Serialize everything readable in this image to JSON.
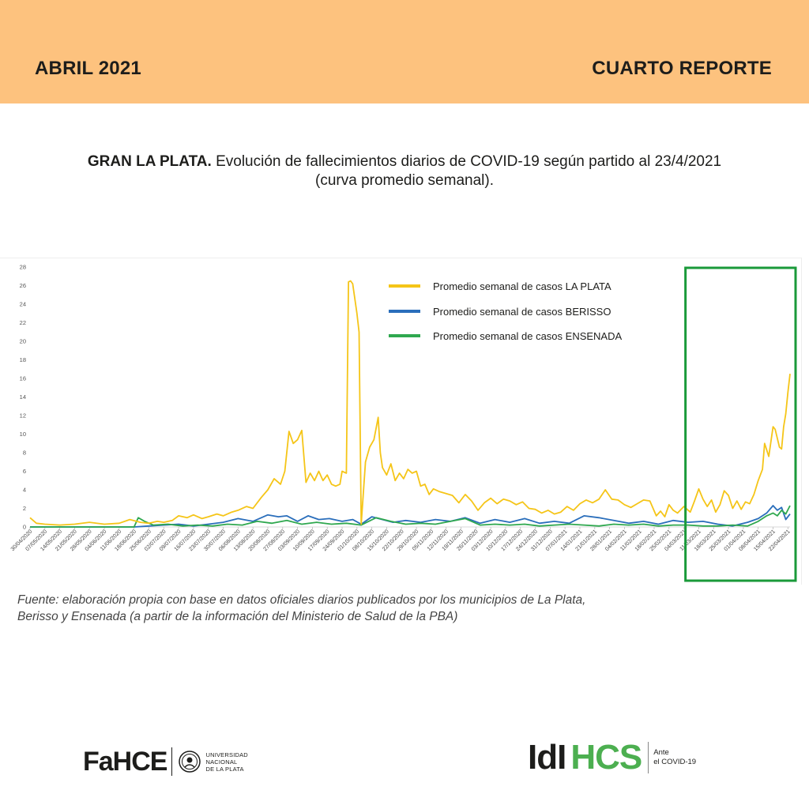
{
  "header": {
    "left": "ABRIL 2021",
    "right": "CUARTO REPORTE"
  },
  "title": {
    "bold": "GRAN LA PLATA.",
    "text": " Evolución de fallecimientos diarios de COVID-19 según partido al 23/4/2021",
    "line2": "(curva promedio semanal)."
  },
  "source": {
    "line1": "Fuente: elaboración propia con base en datos oficiales diarios publicados por los municipios de La Plata,",
    "line2": "Berisso y Ensenada (a partir de la información del Ministerio de Salud de la PBA)"
  },
  "logos": {
    "fahce": "FaHCE",
    "unlp": [
      "UNIVERSIDAD",
      "NACIONAL",
      "DE LA PLATA"
    ],
    "idi": "IdI",
    "hcs": "HCS",
    "ante": [
      "Ante",
      "el COVID-19"
    ]
  },
  "colors": {
    "band": "#fdc27e",
    "la_plata": "#f5c518",
    "berisso": "#2a6ebb",
    "ensenada": "#2fa84f",
    "highlight": "#1a9a3a",
    "hcs": "#4caf50"
  },
  "chart_data": {
    "type": "line",
    "ylim": [
      0,
      28
    ],
    "yticks": [
      0,
      2,
      4,
      6,
      8,
      10,
      12,
      14,
      16,
      18,
      20,
      22,
      24,
      26,
      28
    ],
    "x_start": "30/04/2020",
    "x_end": "23/04/2021",
    "xtick_labels": [
      "30/04/2020",
      "07/05/2020",
      "14/05/2020",
      "21/05/2020",
      "28/05/2020",
      "04/06/2020",
      "11/06/2020",
      "18/06/2020",
      "25/06/2020",
      "02/07/2020",
      "09/07/2020",
      "16/07/2020",
      "23/07/2020",
      "30/07/2020",
      "06/08/2020",
      "13/08/2020",
      "20/08/2020",
      "27/08/2020",
      "03/09/2020",
      "10/09/2020",
      "17/09/2020",
      "24/09/2020",
      "01/10/2020",
      "08/10/2020",
      "15/10/2020",
      "22/10/2020",
      "29/10/2020",
      "05/11/2020",
      "12/11/2020",
      "19/11/2020",
      "26/11/2020",
      "03/12/2020",
      "10/12/2020",
      "17/12/2020",
      "24/12/2020",
      "31/12/2020",
      "07/01/2021",
      "14/01/2021",
      "21/01/2021",
      "28/01/2021",
      "04/02/2021",
      "11/02/2021",
      "18/02/2021",
      "25/02/2021",
      "04/03/2021",
      "11/03/2021",
      "18/03/2021",
      "25/03/2021",
      "01/04/2021",
      "08/04/2021",
      "15/04/2021",
      "22/04/2021"
    ],
    "legend": {
      "placement": "top-center"
    },
    "highlight": {
      "from": "04/03/2021",
      "to": "23/04/2021"
    },
    "series": [
      {
        "name": "Promedio semanal de casos LA PLATA",
        "color_key": "la_plata",
        "points": [
          [
            "30/04/2020",
            1.0
          ],
          [
            "03/05/2020",
            0.4
          ],
          [
            "07/05/2020",
            0.3
          ],
          [
            "14/05/2020",
            0.2
          ],
          [
            "21/05/2020",
            0.3
          ],
          [
            "28/05/2020",
            0.5
          ],
          [
            "04/06/2020",
            0.3
          ],
          [
            "11/06/2020",
            0.4
          ],
          [
            "16/06/2020",
            0.8
          ],
          [
            "21/06/2020",
            0.5
          ],
          [
            "25/06/2020",
            0.4
          ],
          [
            "29/06/2020",
            0.6
          ],
          [
            "02/07/2020",
            0.5
          ],
          [
            "06/07/2020",
            0.7
          ],
          [
            "09/07/2020",
            1.2
          ],
          [
            "13/07/2020",
            1.0
          ],
          [
            "16/07/2020",
            1.3
          ],
          [
            "20/07/2020",
            0.9
          ],
          [
            "23/07/2020",
            1.1
          ],
          [
            "27/07/2020",
            1.4
          ],
          [
            "30/07/2020",
            1.2
          ],
          [
            "03/08/2020",
            1.6
          ],
          [
            "06/08/2020",
            1.8
          ],
          [
            "10/08/2020",
            2.2
          ],
          [
            "13/08/2020",
            2.0
          ],
          [
            "17/08/2020",
            3.2
          ],
          [
            "20/08/2020",
            4.0
          ],
          [
            "23/08/2020",
            5.2
          ],
          [
            "26/08/2020",
            4.6
          ],
          [
            "28/08/2020",
            6.0
          ],
          [
            "30/08/2020",
            10.3
          ],
          [
            "01/09/2020",
            9.0
          ],
          [
            "03/09/2020",
            9.4
          ],
          [
            "05/09/2020",
            10.4
          ],
          [
            "07/09/2020",
            4.8
          ],
          [
            "09/09/2020",
            5.8
          ],
          [
            "11/09/2020",
            5.0
          ],
          [
            "13/09/2020",
            6.0
          ],
          [
            "15/09/2020",
            5.0
          ],
          [
            "17/09/2020",
            5.6
          ],
          [
            "19/09/2020",
            4.6
          ],
          [
            "21/09/2020",
            4.4
          ],
          [
            "23/09/2020",
            4.6
          ],
          [
            "24/09/2020",
            6.0
          ],
          [
            "26/09/2020",
            5.8
          ],
          [
            "27/09/2020",
            26.4
          ],
          [
            "28/09/2020",
            26.5
          ],
          [
            "29/09/2020",
            26.2
          ],
          [
            "30/09/2020",
            24.6
          ],
          [
            "01/10/2020",
            23.0
          ],
          [
            "02/10/2020",
            21.0
          ],
          [
            "03/10/2020",
            0.3
          ],
          [
            "05/10/2020",
            7.0
          ],
          [
            "07/10/2020",
            8.6
          ],
          [
            "09/10/2020",
            9.4
          ],
          [
            "11/10/2020",
            11.8
          ],
          [
            "12/10/2020",
            8.0
          ],
          [
            "13/10/2020",
            6.4
          ],
          [
            "15/10/2020",
            5.6
          ],
          [
            "17/10/2020",
            6.8
          ],
          [
            "19/10/2020",
            5.0
          ],
          [
            "21/10/2020",
            5.8
          ],
          [
            "23/10/2020",
            5.2
          ],
          [
            "25/10/2020",
            6.2
          ],
          [
            "27/10/2020",
            5.8
          ],
          [
            "29/10/2020",
            6.0
          ],
          [
            "31/10/2020",
            4.4
          ],
          [
            "02/11/2020",
            4.6
          ],
          [
            "04/11/2020",
            3.5
          ],
          [
            "06/11/2020",
            4.1
          ],
          [
            "09/11/2020",
            3.8
          ],
          [
            "12/11/2020",
            3.6
          ],
          [
            "15/11/2020",
            3.4
          ],
          [
            "18/11/2020",
            2.6
          ],
          [
            "21/11/2020",
            3.5
          ],
          [
            "24/11/2020",
            2.8
          ],
          [
            "27/11/2020",
            1.8
          ],
          [
            "30/11/2020",
            2.6
          ],
          [
            "03/12/2020",
            3.1
          ],
          [
            "06/12/2020",
            2.5
          ],
          [
            "09/12/2020",
            3.0
          ],
          [
            "12/12/2020",
            2.8
          ],
          [
            "15/12/2020",
            2.4
          ],
          [
            "18/12/2020",
            2.7
          ],
          [
            "21/12/2020",
            2.0
          ],
          [
            "24/12/2020",
            1.9
          ],
          [
            "27/12/2020",
            1.5
          ],
          [
            "30/12/2020",
            1.8
          ],
          [
            "02/01/2021",
            1.4
          ],
          [
            "05/01/2021",
            1.6
          ],
          [
            "08/01/2021",
            2.2
          ],
          [
            "11/01/2021",
            1.8
          ],
          [
            "14/01/2021",
            2.5
          ],
          [
            "17/01/2021",
            2.9
          ],
          [
            "20/01/2021",
            2.6
          ],
          [
            "23/01/2021",
            3.0
          ],
          [
            "26/01/2021",
            4.0
          ],
          [
            "29/01/2021",
            3.0
          ],
          [
            "01/02/2021",
            2.9
          ],
          [
            "04/02/2021",
            2.4
          ],
          [
            "07/02/2021",
            2.1
          ],
          [
            "10/02/2021",
            2.5
          ],
          [
            "13/02/2021",
            2.9
          ],
          [
            "16/02/2021",
            2.8
          ],
          [
            "19/02/2021",
            1.2
          ],
          [
            "21/02/2021",
            1.7
          ],
          [
            "23/02/2021",
            1.1
          ],
          [
            "25/02/2021",
            2.4
          ],
          [
            "27/02/2021",
            1.8
          ],
          [
            "01/03/2021",
            1.5
          ],
          [
            "04/03/2021",
            2.2
          ],
          [
            "07/03/2021",
            1.6
          ],
          [
            "09/03/2021",
            2.8
          ],
          [
            "11/03/2021",
            4.1
          ],
          [
            "13/03/2021",
            3.0
          ],
          [
            "15/03/2021",
            2.2
          ],
          [
            "17/03/2021",
            2.9
          ],
          [
            "19/03/2021",
            1.6
          ],
          [
            "21/03/2021",
            2.4
          ],
          [
            "23/03/2021",
            3.9
          ],
          [
            "25/03/2021",
            3.4
          ],
          [
            "27/03/2021",
            2.0
          ],
          [
            "29/03/2021",
            2.8
          ],
          [
            "31/03/2021",
            1.9
          ],
          [
            "02/04/2021",
            2.7
          ],
          [
            "04/04/2021",
            2.5
          ],
          [
            "06/04/2021",
            3.5
          ],
          [
            "08/04/2021",
            5.0
          ],
          [
            "10/04/2021",
            6.2
          ],
          [
            "11/04/2021",
            9.0
          ],
          [
            "13/04/2021",
            7.6
          ],
          [
            "15/04/2021",
            10.8
          ],
          [
            "16/04/2021",
            10.5
          ],
          [
            "18/04/2021",
            8.6
          ],
          [
            "19/04/2021",
            8.4
          ],
          [
            "20/04/2021",
            10.8
          ],
          [
            "21/04/2021",
            12.2
          ],
          [
            "22/04/2021",
            14.5
          ],
          [
            "23/04/2021",
            16.5
          ]
        ]
      },
      {
        "name": "Promedio semanal de casos BERISSO",
        "color_key": "berisso",
        "points": [
          [
            "30/04/2020",
            0.0
          ],
          [
            "18/06/2020",
            0.0
          ],
          [
            "25/06/2020",
            0.1
          ],
          [
            "02/07/2020",
            0.2
          ],
          [
            "09/07/2020",
            0.3
          ],
          [
            "16/07/2020",
            0.1
          ],
          [
            "23/07/2020",
            0.3
          ],
          [
            "30/07/2020",
            0.5
          ],
          [
            "06/08/2020",
            0.9
          ],
          [
            "13/08/2020",
            0.6
          ],
          [
            "20/08/2020",
            1.3
          ],
          [
            "25/08/2020",
            1.1
          ],
          [
            "29/08/2020",
            1.2
          ],
          [
            "03/09/2020",
            0.6
          ],
          [
            "08/09/2020",
            1.2
          ],
          [
            "13/09/2020",
            0.8
          ],
          [
            "18/09/2020",
            0.9
          ],
          [
            "24/09/2020",
            0.6
          ],
          [
            "29/09/2020",
            0.8
          ],
          [
            "03/10/2020",
            0.3
          ],
          [
            "08/10/2020",
            1.1
          ],
          [
            "13/10/2020",
            0.8
          ],
          [
            "18/10/2020",
            0.5
          ],
          [
            "24/10/2020",
            0.7
          ],
          [
            "31/10/2020",
            0.5
          ],
          [
            "07/11/2020",
            0.8
          ],
          [
            "14/11/2020",
            0.6
          ],
          [
            "21/11/2020",
            1.0
          ],
          [
            "28/11/2020",
            0.4
          ],
          [
            "05/12/2020",
            0.8
          ],
          [
            "12/12/2020",
            0.5
          ],
          [
            "19/12/2020",
            0.9
          ],
          [
            "26/12/2020",
            0.4
          ],
          [
            "02/01/2021",
            0.6
          ],
          [
            "09/01/2021",
            0.4
          ],
          [
            "16/01/2021",
            1.2
          ],
          [
            "23/01/2021",
            1.0
          ],
          [
            "30/01/2021",
            0.7
          ],
          [
            "06/02/2021",
            0.4
          ],
          [
            "13/02/2021",
            0.6
          ],
          [
            "20/02/2021",
            0.3
          ],
          [
            "27/02/2021",
            0.7
          ],
          [
            "06/03/2021",
            0.5
          ],
          [
            "13/03/2021",
            0.6
          ],
          [
            "20/03/2021",
            0.3
          ],
          [
            "27/03/2021",
            0.1
          ],
          [
            "03/04/2021",
            0.5
          ],
          [
            "08/04/2021",
            0.9
          ],
          [
            "12/04/2021",
            1.5
          ],
          [
            "15/04/2021",
            2.3
          ],
          [
            "17/04/2021",
            1.8
          ],
          [
            "19/04/2021",
            2.1
          ],
          [
            "21/04/2021",
            0.8
          ],
          [
            "23/04/2021",
            1.4
          ]
        ]
      },
      {
        "name": "Promedio semanal de casos ENSENADA",
        "color_key": "ensenada",
        "points": [
          [
            "30/04/2020",
            0.0
          ],
          [
            "18/06/2020",
            0.0
          ],
          [
            "20/06/2020",
            1.0
          ],
          [
            "23/06/2020",
            0.6
          ],
          [
            "27/06/2020",
            0.2
          ],
          [
            "04/07/2020",
            0.3
          ],
          [
            "11/07/2020",
            0.1
          ],
          [
            "18/07/2020",
            0.2
          ],
          [
            "25/07/2020",
            0.1
          ],
          [
            "01/08/2020",
            0.3
          ],
          [
            "08/08/2020",
            0.2
          ],
          [
            "15/08/2020",
            0.6
          ],
          [
            "22/08/2020",
            0.4
          ],
          [
            "29/08/2020",
            0.7
          ],
          [
            "05/09/2020",
            0.3
          ],
          [
            "12/09/2020",
            0.5
          ],
          [
            "19/09/2020",
            0.3
          ],
          [
            "26/09/2020",
            0.4
          ],
          [
            "03/10/2020",
            0.2
          ],
          [
            "10/10/2020",
            1.0
          ],
          [
            "17/10/2020",
            0.6
          ],
          [
            "24/10/2020",
            0.3
          ],
          [
            "31/10/2020",
            0.4
          ],
          [
            "07/11/2020",
            0.3
          ],
          [
            "14/11/2020",
            0.6
          ],
          [
            "21/11/2020",
            0.9
          ],
          [
            "28/11/2020",
            0.2
          ],
          [
            "05/12/2020",
            0.3
          ],
          [
            "12/12/2020",
            0.2
          ],
          [
            "19/12/2020",
            0.3
          ],
          [
            "26/12/2020",
            0.1
          ],
          [
            "02/01/2021",
            0.2
          ],
          [
            "09/01/2021",
            0.3
          ],
          [
            "16/01/2021",
            0.2
          ],
          [
            "23/01/2021",
            0.1
          ],
          [
            "30/01/2021",
            0.3
          ],
          [
            "06/02/2021",
            0.2
          ],
          [
            "13/02/2021",
            0.3
          ],
          [
            "20/02/2021",
            0.1
          ],
          [
            "27/02/2021",
            0.2
          ],
          [
            "06/03/2021",
            0.2
          ],
          [
            "13/03/2021",
            0.1
          ],
          [
            "20/03/2021",
            0.1
          ],
          [
            "27/03/2021",
            0.2
          ],
          [
            "03/04/2021",
            0.1
          ],
          [
            "08/04/2021",
            0.6
          ],
          [
            "12/04/2021",
            1.2
          ],
          [
            "15/04/2021",
            1.5
          ],
          [
            "17/04/2021",
            1.2
          ],
          [
            "19/04/2021",
            1.8
          ],
          [
            "21/04/2021",
            1.4
          ],
          [
            "23/04/2021",
            2.3
          ]
        ]
      }
    ]
  }
}
